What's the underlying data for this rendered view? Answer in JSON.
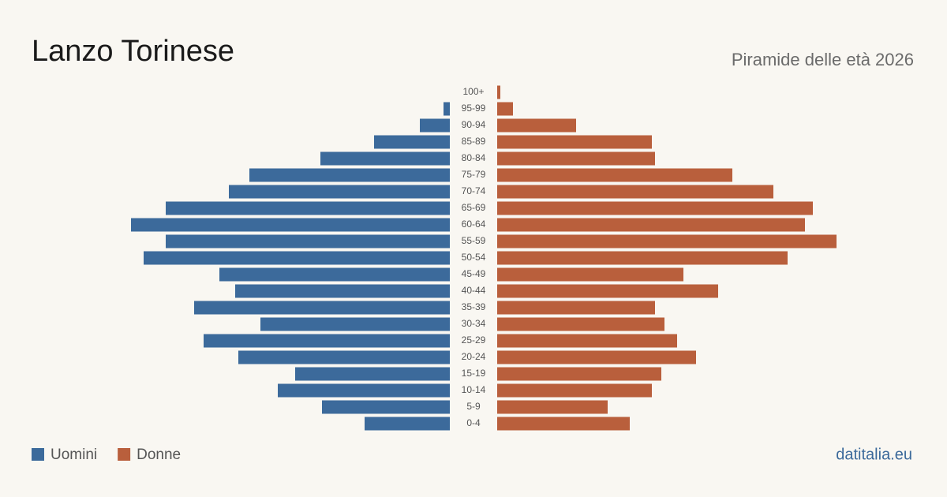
{
  "chart_data": {
    "type": "pyramid",
    "title": "Lanzo Torinese",
    "subtitle": "Piramide delle età 2026",
    "source": "datitalia.eu",
    "categories": [
      "100+",
      "95-99",
      "90-94",
      "85-89",
      "80-84",
      "75-79",
      "70-74",
      "65-69",
      "60-64",
      "55-59",
      "50-54",
      "45-49",
      "40-44",
      "35-39",
      "30-34",
      "25-29",
      "20-24",
      "15-19",
      "10-14",
      "5-9",
      "0-4"
    ],
    "series": [
      {
        "name": "Uomini",
        "color": "#3c6a9b",
        "values": [
          0,
          4,
          19,
          48,
          82,
          127,
          140,
          180,
          202,
          180,
          194,
          146,
          136,
          162,
          120,
          156,
          134,
          98,
          109,
          81,
          54
        ]
      },
      {
        "name": "Donne",
        "color": "#b95f3c",
        "values": [
          2,
          10,
          50,
          98,
          100,
          149,
          175,
          200,
          195,
          215,
          184,
          118,
          140,
          100,
          106,
          114,
          126,
          104,
          98,
          70,
          84
        ]
      }
    ]
  }
}
